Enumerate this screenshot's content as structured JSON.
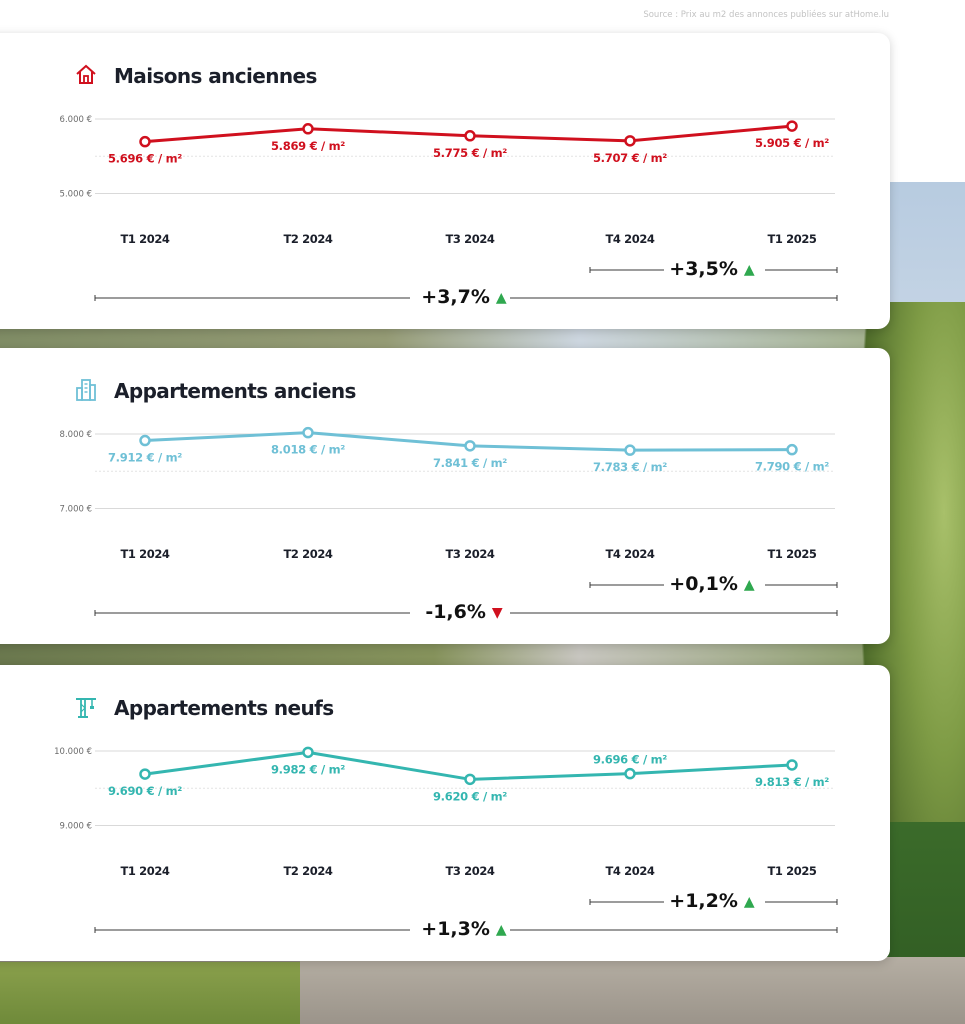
{
  "source": "Source : Prix au m2 des annonces publiées sur atHome.lu",
  "colors": {
    "maisons": "#d0101e",
    "appartements_anciens": "#6fc0d6",
    "appartements_neufs": "#34b6b0",
    "up": "#2fa84f",
    "down": "#d0101e"
  },
  "chart_data": [
    {
      "type": "line",
      "title": "Maisons anciennes",
      "icon": "house-icon",
      "color": "#d0101e",
      "categories": [
        "T1 2024",
        "T2 2024",
        "T3 2024",
        "T4 2024",
        "T1 2025"
      ],
      "values": [
        5696,
        5869,
        5775,
        5707,
        5905
      ],
      "labels": [
        "5.696 € / m²",
        "5.869 € / m²",
        "5.775 € / m²",
        "5.707 € / m²",
        "5.905 € / m²"
      ],
      "label_position": [
        "below",
        "below",
        "below",
        "below",
        "below"
      ],
      "yticks": [
        {
          "value": 6000,
          "label": "6.000 €"
        },
        {
          "value": 5000,
          "label": "5.000 €"
        }
      ],
      "ylim": [
        4900,
        6000
      ],
      "evolution_quarter": {
        "text": "+3,5%",
        "direction": "up"
      },
      "evolution_year": {
        "text": "+3,7%",
        "direction": "up"
      }
    },
    {
      "type": "line",
      "title": "Appartements anciens",
      "icon": "building-icon",
      "color": "#6fc0d6",
      "categories": [
        "T1 2024",
        "T2 2024",
        "T3 2024",
        "T4 2024",
        "T1 2025"
      ],
      "values": [
        7912,
        8018,
        7841,
        7783,
        7790
      ],
      "labels": [
        "7.912 € / m²",
        "8.018 € / m²",
        "7.841 € / m²",
        "7.783 € / m²",
        "7.790 € / m²"
      ],
      "label_position": [
        "below",
        "below",
        "below",
        "below",
        "below"
      ],
      "yticks": [
        {
          "value": 8000,
          "label": "8.000 €"
        },
        {
          "value": 7000,
          "label": "7.000 €"
        }
      ],
      "ylim": [
        6900,
        8000
      ],
      "evolution_quarter": {
        "text": "+0,1%",
        "direction": "up"
      },
      "evolution_year": {
        "text": "-1,6%",
        "direction": "down"
      }
    },
    {
      "type": "line",
      "title": "Appartements neufs",
      "icon": "crane-icon",
      "color": "#34b6b0",
      "categories": [
        "T1 2024",
        "T2 2024",
        "T3 2024",
        "T4 2024",
        "T1 2025"
      ],
      "values": [
        9690,
        9982,
        9620,
        9696,
        9813
      ],
      "labels": [
        "9.690 € / m²",
        "9.982 € / m²",
        "9.620 € / m²",
        "9.696 € / m²",
        "9.813 € / m²"
      ],
      "label_position": [
        "below",
        "below",
        "below",
        "above",
        "below"
      ],
      "yticks": [
        {
          "value": 10000,
          "label": "10.000 €"
        },
        {
          "value": 9000,
          "label": "9.000 €"
        }
      ],
      "ylim": [
        8900,
        10000
      ],
      "evolution_quarter": {
        "text": "+1,2%",
        "direction": "up"
      },
      "evolution_year": {
        "text": "+1,3%",
        "direction": "up"
      }
    }
  ]
}
